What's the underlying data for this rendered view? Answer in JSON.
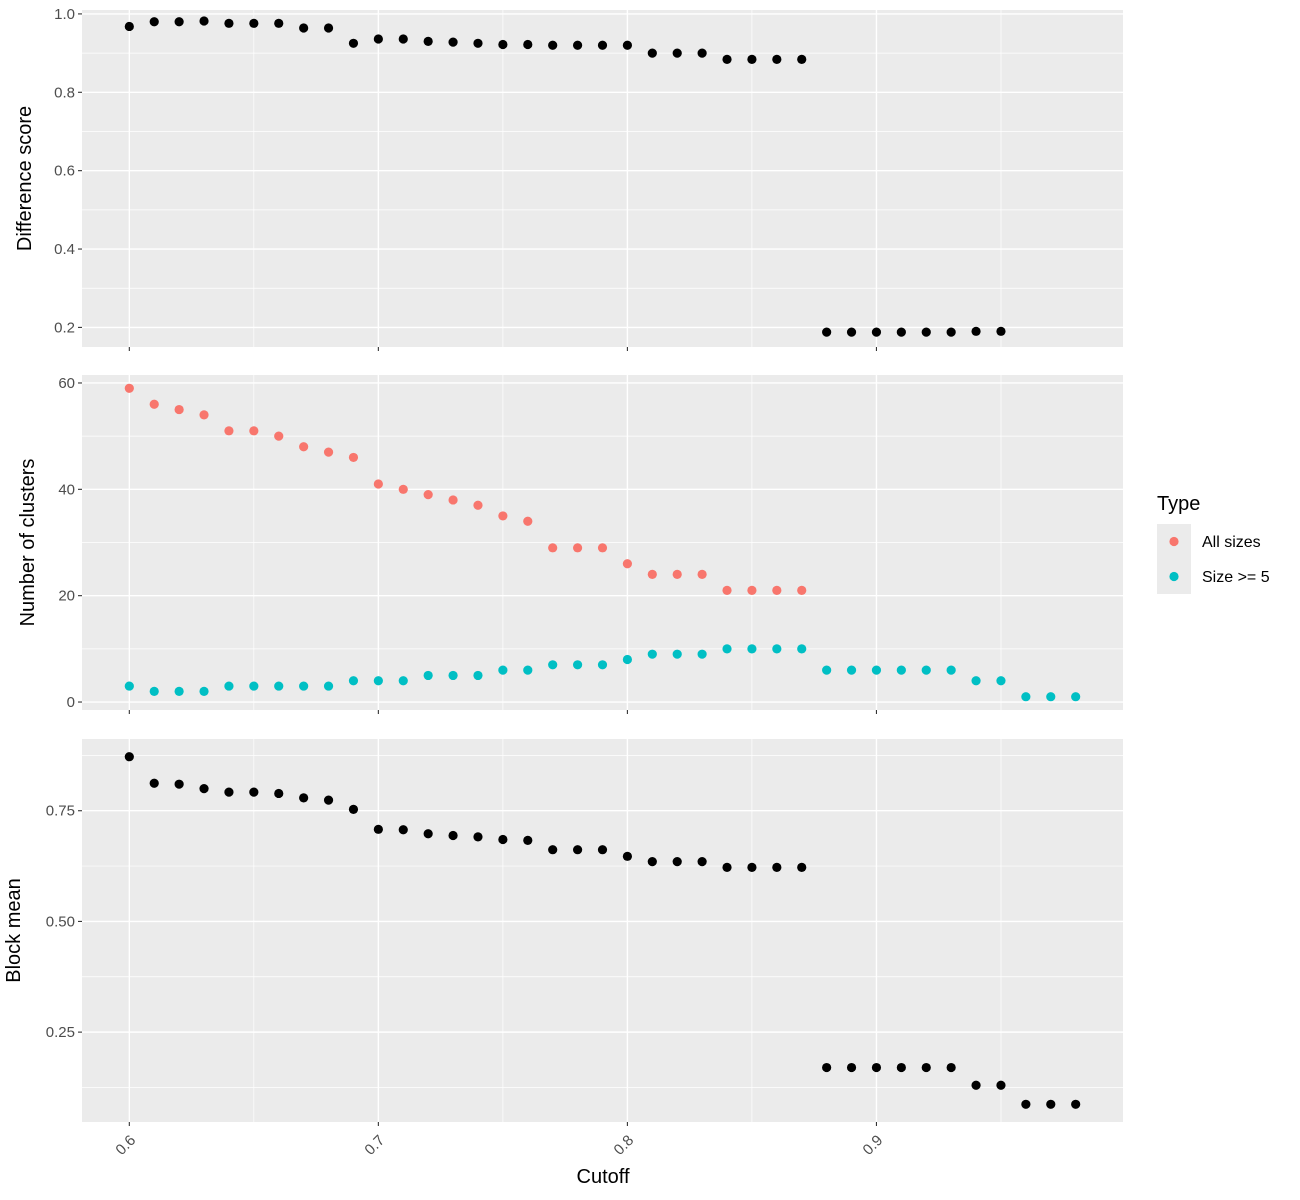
{
  "chart_data": {
    "type": "scatter",
    "xlabel": "Cutoff",
    "x_ticks": [
      0.6,
      0.7,
      0.8,
      0.9
    ],
    "x_tick_labels": [
      "0.6",
      "0.7",
      "0.8",
      "0.9"
    ],
    "xlim": [
      0.581,
      0.999
    ],
    "x": [
      0.6,
      0.61,
      0.62,
      0.63,
      0.64,
      0.65,
      0.66,
      0.67,
      0.68,
      0.69,
      0.7,
      0.71,
      0.72,
      0.73,
      0.74,
      0.75,
      0.76,
      0.77,
      0.78,
      0.79,
      0.8,
      0.81,
      0.82,
      0.83,
      0.84,
      0.85,
      0.86,
      0.87,
      0.88,
      0.89,
      0.9,
      0.91,
      0.92,
      0.93,
      0.94,
      0.95,
      0.96,
      0.97,
      0.98
    ],
    "legend": {
      "title": "Type",
      "position": "right",
      "entries": [
        {
          "label": "All sizes",
          "color": "#F8766D"
        },
        {
          "label": "Size >= 5",
          "color": "#00BFC4"
        }
      ]
    },
    "panels": [
      {
        "id": "difference",
        "ylabel": "Difference score",
        "ylim": [
          0.15,
          1.01
        ],
        "y_ticks": [
          0.2,
          0.4,
          0.6,
          0.8,
          1.0
        ],
        "y_tick_labels": [
          "0.2",
          "0.4",
          "0.6",
          "0.8",
          "1.0"
        ],
        "series": [
          {
            "color": "#000000",
            "x": [
              0.6,
              0.61,
              0.62,
              0.63,
              0.64,
              0.65,
              0.66,
              0.67,
              0.68,
              0.69,
              0.7,
              0.71,
              0.72,
              0.73,
              0.74,
              0.75,
              0.76,
              0.77,
              0.78,
              0.79,
              0.8,
              0.81,
              0.82,
              0.83,
              0.84,
              0.85,
              0.86,
              0.87,
              0.88,
              0.89,
              0.9,
              0.91,
              0.92,
              0.93,
              0.94,
              0.95
            ],
            "y": [
              0.968,
              0.98,
              0.98,
              0.982,
              0.976,
              0.976,
              0.976,
              0.964,
              0.964,
              0.925,
              0.936,
              0.936,
              0.93,
              0.928,
              0.925,
              0.922,
              0.922,
              0.92,
              0.92,
              0.92,
              0.92,
              0.9,
              0.9,
              0.9,
              0.884,
              0.884,
              0.884,
              0.884,
              0.188,
              0.188,
              0.188,
              0.188,
              0.188,
              0.188,
              0.19,
              0.19
            ]
          }
        ]
      },
      {
        "id": "clusters",
        "ylabel": "Number of clusters",
        "ylim": [
          -1.5,
          61.5
        ],
        "y_ticks": [
          0,
          20,
          40,
          60
        ],
        "y_tick_labels": [
          "0",
          "20",
          "40",
          "60"
        ],
        "series": [
          {
            "name": "All sizes",
            "color": "#F8766D",
            "x": [
              0.6,
              0.61,
              0.62,
              0.63,
              0.64,
              0.65,
              0.66,
              0.67,
              0.68,
              0.69,
              0.7,
              0.71,
              0.72,
              0.73,
              0.74,
              0.75,
              0.76,
              0.77,
              0.78,
              0.79,
              0.8,
              0.81,
              0.82,
              0.83,
              0.84,
              0.85,
              0.86,
              0.87
            ],
            "y": [
              59,
              56,
              55,
              54,
              51,
              51,
              50,
              48,
              47,
              46,
              41,
              40,
              39,
              38,
              37,
              35,
              34,
              29,
              29,
              29,
              26,
              24,
              24,
              24,
              21,
              21,
              21,
              21
            ]
          },
          {
            "name": "Size >= 5",
            "color": "#00BFC4",
            "x": [
              0.6,
              0.61,
              0.62,
              0.63,
              0.64,
              0.65,
              0.66,
              0.67,
              0.68,
              0.69,
              0.7,
              0.71,
              0.72,
              0.73,
              0.74,
              0.75,
              0.76,
              0.77,
              0.78,
              0.79,
              0.8,
              0.81,
              0.82,
              0.83,
              0.84,
              0.85,
              0.86,
              0.87,
              0.88,
              0.89,
              0.9,
              0.91,
              0.92,
              0.93,
              0.94,
              0.95,
              0.96,
              0.97,
              0.98
            ],
            "y": [
              3,
              2,
              2,
              2,
              3,
              3,
              3,
              3,
              3,
              4,
              4,
              4,
              5,
              5,
              5,
              6,
              6,
              7,
              7,
              7,
              8,
              9,
              9,
              9,
              10,
              10,
              10,
              10,
              6,
              6,
              6,
              6,
              6,
              6,
              4,
              4,
              1,
              1,
              1
            ]
          }
        ]
      },
      {
        "id": "blockmean",
        "ylabel": "Block mean",
        "ylim": [
          0.047,
          0.912
        ],
        "y_ticks": [
          0.25,
          0.5,
          0.75
        ],
        "y_tick_labels": [
          "0.25",
          "0.50",
          "0.75"
        ],
        "series": [
          {
            "color": "#000000",
            "x": [
              0.6,
              0.61,
              0.62,
              0.63,
              0.64,
              0.65,
              0.66,
              0.67,
              0.68,
              0.69,
              0.7,
              0.71,
              0.72,
              0.73,
              0.74,
              0.75,
              0.76,
              0.77,
              0.78,
              0.79,
              0.8,
              0.81,
              0.82,
              0.83,
              0.84,
              0.85,
              0.86,
              0.87,
              0.88,
              0.89,
              0.9,
              0.91,
              0.92,
              0.93,
              0.94,
              0.95,
              0.96,
              0.97,
              0.98
            ],
            "y": [
              0.872,
              0.812,
              0.81,
              0.8,
              0.792,
              0.792,
              0.789,
              0.779,
              0.774,
              0.753,
              0.708,
              0.707,
              0.698,
              0.694,
              0.691,
              0.685,
              0.683,
              0.662,
              0.662,
              0.662,
              0.647,
              0.635,
              0.635,
              0.635,
              0.622,
              0.622,
              0.622,
              0.622,
              0.17,
              0.17,
              0.17,
              0.17,
              0.17,
              0.17,
              0.13,
              0.13,
              0.087,
              0.087,
              0.087
            ]
          }
        ]
      }
    ]
  }
}
